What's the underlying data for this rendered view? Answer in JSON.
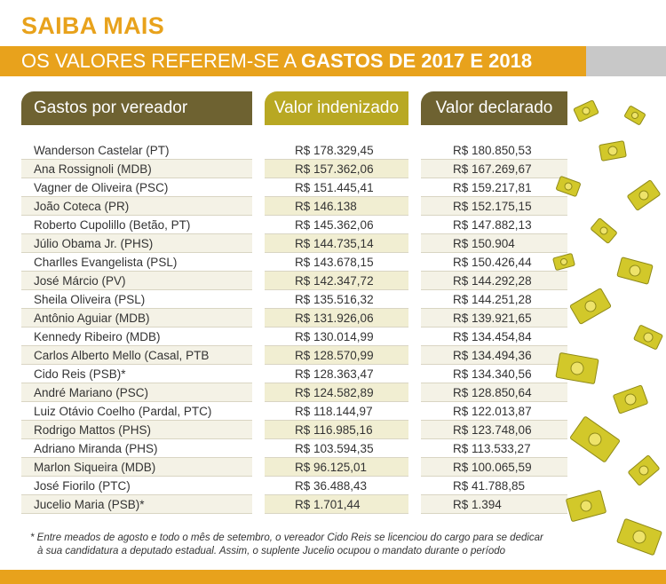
{
  "title": "SAIBA MAIS",
  "banner": {
    "prefix": "OS VALORES REFEREM-SE A ",
    "bold": "GASTOS DE 2017 E 2018"
  },
  "headers": {
    "name": "Gastos por vereador",
    "indenizado": "Valor indenizado",
    "declarado": "Valor declarado"
  },
  "rows": [
    {
      "name": "Wanderson Castelar (PT)",
      "indenizado": "R$ 178.329,45",
      "declarado": "R$ 180.850,53"
    },
    {
      "name": "Ana Rossignoli (MDB)",
      "indenizado": "R$ 157.362,06",
      "declarado": "R$ 167.269,67"
    },
    {
      "name": "Vagner de Oliveira (PSC)",
      "indenizado": "R$ 151.445,41",
      "declarado": "R$ 159.217,81"
    },
    {
      "name": "João Coteca (PR)",
      "indenizado": "R$ 146.138",
      "declarado": "R$ 152.175,15"
    },
    {
      "name": "Roberto Cupolillo (Betão, PT)",
      "indenizado": "R$ 145.362,06",
      "declarado": "R$ 147.882,13"
    },
    {
      "name": "Júlio Obama Jr. (PHS)",
      "indenizado": "R$ 144.735,14",
      "declarado": "R$ 150.904"
    },
    {
      "name": "Charlles Evangelista (PSL)",
      "indenizado": "R$ 143.678,15",
      "declarado": "R$ 150.426,44"
    },
    {
      "name": "José Márcio (PV)",
      "indenizado": "R$ 142.347,72",
      "declarado": "R$ 144.292,28"
    },
    {
      "name": "Sheila Oliveira (PSL)",
      "indenizado": "R$ 135.516,32",
      "declarado": "R$ 144.251,28"
    },
    {
      "name": "Antônio Aguiar (MDB)",
      "indenizado": "R$ 131.926,06",
      "declarado": "R$ 139.921,65"
    },
    {
      "name": "Kennedy Ribeiro (MDB)",
      "indenizado": "R$ 130.014,99",
      "declarado": "R$ 134.454,84"
    },
    {
      "name": "Carlos Alberto Mello (Casal, PTB",
      "indenizado": "R$ 128.570,99",
      "declarado": "R$ 134.494,36"
    },
    {
      "name": "Cido Reis (PSB)*",
      "indenizado": "R$ 128.363,47",
      "declarado": "R$ 134.340,56"
    },
    {
      "name": "André Mariano (PSC)",
      "indenizado": "R$ 124.582,89",
      "declarado": "R$ 128.850,64"
    },
    {
      "name": "Luiz Otávio Coelho (Pardal, PTC)",
      "indenizado": "R$ 118.144,97",
      "declarado": "R$ 122.013,87"
    },
    {
      "name": "Rodrigo Mattos (PHS)",
      "indenizado": "R$ 116.985,16",
      "declarado": "R$ 123.748,06"
    },
    {
      "name": "Adriano Miranda (PHS)",
      "indenizado": "R$ 103.594,35",
      "declarado": "R$ 113.533,27"
    },
    {
      "name": "Marlon Siqueira (MDB)",
      "indenizado": "R$ 96.125,01",
      "declarado": "R$ 100.065,59"
    },
    {
      "name": "José Fiorilo (PTC)",
      "indenizado": "R$ 36.488,43",
      "declarado": "R$ 41.788,85"
    },
    {
      "name": "Jucelio Maria (PSB)*",
      "indenizado": "R$ 1.701,44",
      "declarado": "R$ 1.394"
    }
  ],
  "footnote": {
    "line1": "* Entre meados de agosto e todo o mês de setembro, o vereador Cido Reis se licenciou do cargo para se dedicar",
    "line2": "à sua candidatura a deputado estadual. Assim, o suplente Jucelio ocupou o mandato durante o período"
  },
  "colors": {
    "accent": "#e8a21c",
    "header_dark": "#6e6231",
    "header_gold": "#b8a823",
    "money": "#d2c82a"
  },
  "decoration": "flying-money-bills-icon"
}
